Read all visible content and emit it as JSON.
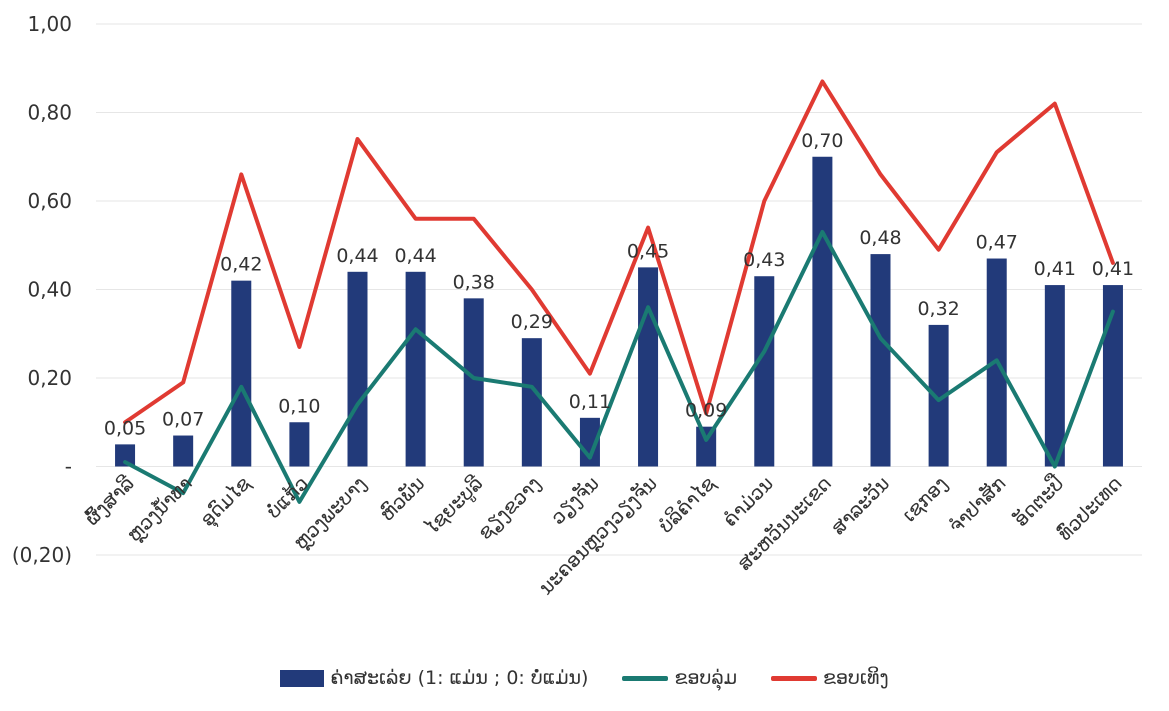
{
  "chart_data": {
    "type": "bar",
    "categories": [
      "ຜົ້ງສາລີ",
      "ຫຼວງນ້ຳທາ",
      "ອຸດົມໄຊ",
      "ບໍ່ແກ້ວ",
      "ຫຼວງພະບາງ",
      "ຫົວພັນ",
      "ໄຊຍະບູລີ",
      "ຊຽງຂວາງ",
      "ວຽງຈັນ",
      "ນະຄອນຫຼວງວຽງຈັນ",
      "ບໍລິຄຳໄຊ",
      "ຄຳມ່ວນ",
      "ສະຫວັນນະເຂດ",
      "ສາລະວັນ",
      "ເຊກອງ",
      "ຈຳປາສັກ",
      "ອັດຕະປື",
      "ທົ່ວປະເທດ"
    ],
    "y_ticks": [
      "1,00",
      "0,80",
      "0,60",
      "0,40",
      "0,20",
      "-",
      "(0,20)"
    ],
    "ylim": [
      -0.2,
      1.0
    ],
    "grid": true,
    "legend_position": "bottom",
    "series": [
      {
        "name": "ຄ່າສະເລ່ຍ (1: ແມ່ນ ; 0: ບໍ່ແມ່ນ)",
        "type": "bar",
        "color": "#223a7a",
        "values": [
          0.05,
          0.07,
          0.42,
          0.1,
          0.44,
          0.44,
          0.38,
          0.29,
          0.11,
          0.45,
          0.09,
          0.43,
          0.7,
          0.48,
          0.32,
          0.47,
          0.41,
          0.41
        ],
        "labels": [
          "0,05",
          "0,07",
          "0,42",
          "0,10",
          "0,44",
          "0,44",
          "0,38",
          "0,29",
          "0,11",
          "0,45",
          "0,09",
          "0,43",
          "0,70",
          "0,48",
          "0,32",
          "0,47",
          "0,41",
          "0,41"
        ]
      },
      {
        "name": "ຂອບລຸ່ມ",
        "type": "line",
        "color": "#1a7a72",
        "values": [
          0.01,
          -0.06,
          0.18,
          -0.08,
          0.14,
          0.31,
          0.2,
          0.18,
          0.02,
          0.36,
          0.06,
          0.26,
          0.53,
          0.29,
          0.15,
          0.24,
          0.0,
          0.35
        ]
      },
      {
        "name": "ຂອບເທິງ",
        "type": "line",
        "color": "#e03a32",
        "values": [
          0.1,
          0.19,
          0.66,
          0.27,
          0.74,
          0.56,
          0.56,
          0.4,
          0.21,
          0.54,
          0.12,
          0.6,
          0.87,
          0.66,
          0.49,
          0.71,
          0.82,
          0.46
        ]
      }
    ]
  }
}
